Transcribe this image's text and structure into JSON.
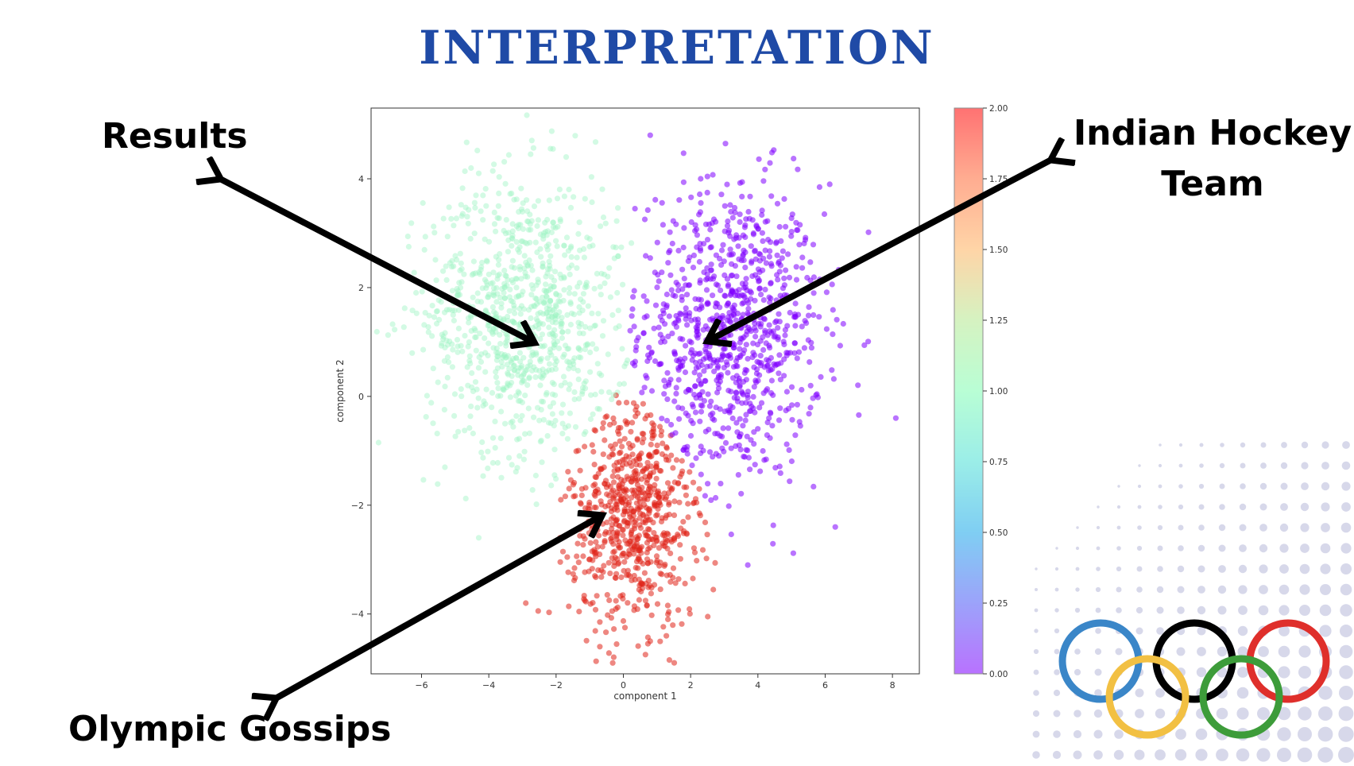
{
  "title": "INTERPRETATION",
  "callouts": {
    "results": "Results",
    "hockey_line1": "Indian Hockey",
    "hockey_line2": "Team",
    "gossips": "Olympic Gossips"
  },
  "chart_data": {
    "type": "scatter",
    "title": "",
    "xlabel": "component 1",
    "ylabel": "component 2",
    "xlim": [
      -7.5,
      8.8
    ],
    "ylim": [
      -5.1,
      5.3
    ],
    "x_ticks": [
      -6,
      -4,
      -2,
      0,
      2,
      4,
      6,
      8
    ],
    "y_ticks": [
      -4,
      -2,
      0,
      2,
      4
    ],
    "grid": false,
    "colorbar": {
      "range": [
        0,
        2
      ],
      "ticks": [
        "0.00",
        "0.25",
        "0.50",
        "0.75",
        "1.00",
        "1.25",
        "1.50",
        "1.75",
        "2.00"
      ],
      "colormap": "rainbow"
    },
    "clusters": [
      {
        "label": 0,
        "color": "#8000ff",
        "center": [
          3.2,
          1.2
        ],
        "spread": [
          1.6,
          1.6
        ],
        "count": 900
      },
      {
        "label": 1,
        "color": "#9ef3c4",
        "center": [
          -3.0,
          1.5
        ],
        "spread": [
          1.7,
          1.5
        ],
        "count": 900
      },
      {
        "label": 2,
        "color": "#e0251a",
        "center": [
          0.3,
          -2.2
        ],
        "spread": [
          1.1,
          1.2
        ],
        "count": 700
      }
    ],
    "outlier_points": [
      {
        "x": 0.8,
        "y": 4.8,
        "label": 0
      },
      {
        "x": 2.3,
        "y": 4.0,
        "label": 0
      },
      {
        "x": 8.1,
        "y": -0.4,
        "label": 0
      },
      {
        "x": 6.3,
        "y": -2.4,
        "label": 0
      },
      {
        "x": 3.7,
        "y": -3.1,
        "label": 0
      },
      {
        "x": -4.3,
        "y": 4.1,
        "label": 1
      },
      {
        "x": -1.7,
        "y": 4.4,
        "label": 1
      },
      {
        "x": -4.3,
        "y": -2.6,
        "label": 1
      },
      {
        "x": -2.9,
        "y": -3.8,
        "label": 2
      },
      {
        "x": 0.8,
        "y": -4.5,
        "label": 2
      },
      {
        "x": -0.7,
        "y": -4.6,
        "label": 2
      }
    ]
  },
  "colors": {
    "title": "#1f4aa6",
    "ring_blue": "#3a86c8",
    "ring_yellow": "#f2c043",
    "ring_black": "#000000",
    "ring_green": "#3d9c3a",
    "ring_red": "#df2f2b",
    "halftone": "#c9cbe3"
  },
  "icons": [
    "olympic-rings-icon",
    "halftone-dots-decoration",
    "arrow-icon"
  ]
}
